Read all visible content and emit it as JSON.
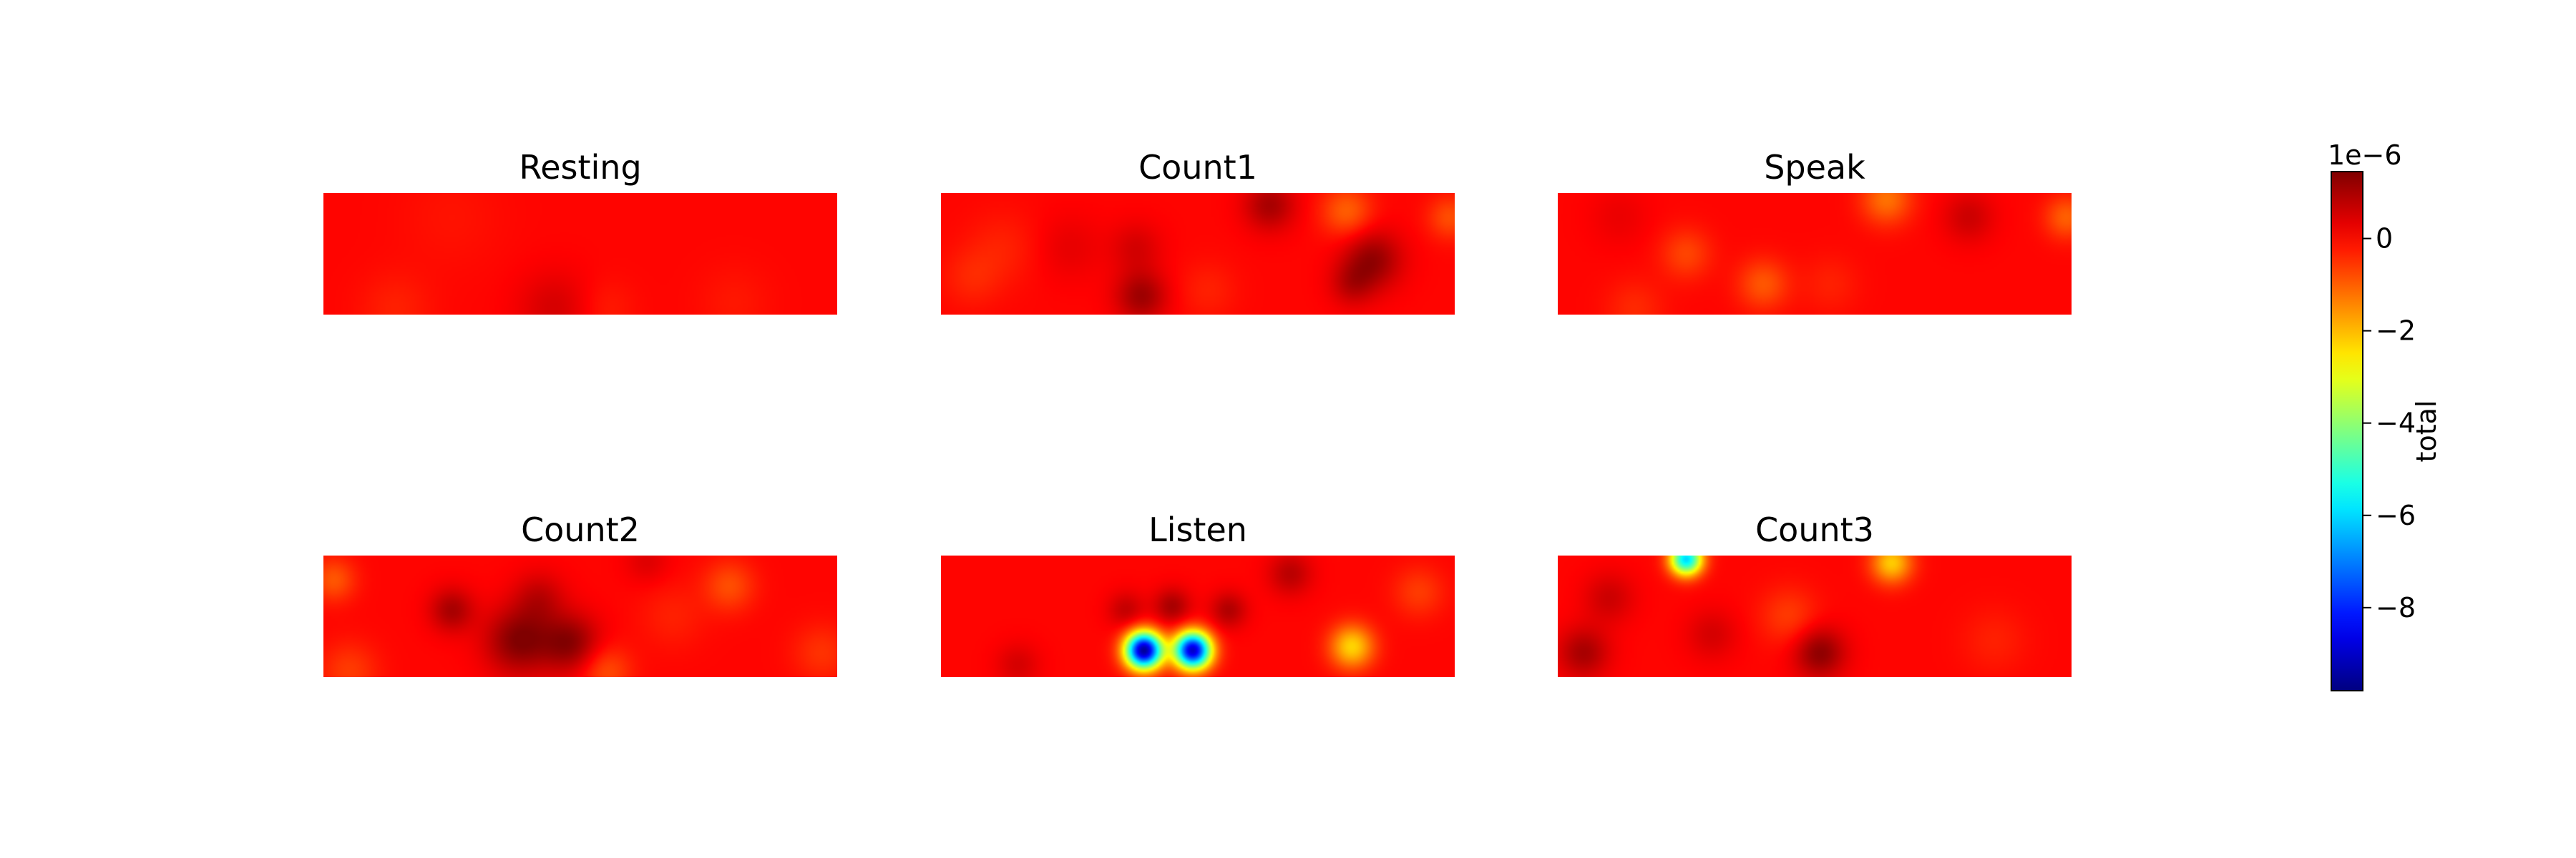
{
  "chart_data": {
    "type": "heatmap",
    "colormap": "jet",
    "panels": [
      {
        "title": "Resting",
        "blobs": [
          {
            "x": 0.45,
            "y": 0.95,
            "v": 0.5,
            "s": 0.05
          },
          {
            "x": 0.14,
            "y": 0.95,
            "v": -0.3,
            "s": 0.05
          },
          {
            "x": 0.55,
            "y": 0.95,
            "v": -0.25,
            "s": 0.04
          },
          {
            "x": 0.8,
            "y": 0.9,
            "v": -0.2,
            "s": 0.05
          },
          {
            "x": 0.25,
            "y": 0.2,
            "v": -0.15,
            "s": 0.07
          }
        ]
      },
      {
        "title": "Count1",
        "blobs": [
          {
            "x": 0.64,
            "y": 0.1,
            "v": 1.0,
            "s": 0.035
          },
          {
            "x": 0.79,
            "y": 0.15,
            "v": -1.0,
            "s": 0.035
          },
          {
            "x": 0.84,
            "y": 0.55,
            "v": 1.2,
            "s": 0.04
          },
          {
            "x": 0.8,
            "y": 0.75,
            "v": 0.7,
            "s": 0.03
          },
          {
            "x": 0.39,
            "y": 0.85,
            "v": 1.1,
            "s": 0.035
          },
          {
            "x": 0.38,
            "y": 0.45,
            "v": 0.5,
            "s": 0.035
          },
          {
            "x": 0.25,
            "y": 0.45,
            "v": 0.3,
            "s": 0.045
          },
          {
            "x": 0.99,
            "y": 0.2,
            "v": -0.8,
            "s": 0.03
          },
          {
            "x": 0.12,
            "y": 0.45,
            "v": -0.3,
            "s": 0.05
          },
          {
            "x": 0.52,
            "y": 0.8,
            "v": -0.3,
            "s": 0.04
          },
          {
            "x": 0.06,
            "y": 0.7,
            "v": -0.35,
            "s": 0.04
          }
        ]
      },
      {
        "title": "Speak",
        "blobs": [
          {
            "x": 0.64,
            "y": 0.05,
            "v": -1.2,
            "s": 0.035
          },
          {
            "x": 0.25,
            "y": 0.5,
            "v": -0.7,
            "s": 0.035
          },
          {
            "x": 0.4,
            "y": 0.75,
            "v": -0.9,
            "s": 0.035
          },
          {
            "x": 0.8,
            "y": 0.2,
            "v": 0.6,
            "s": 0.035
          },
          {
            "x": 0.99,
            "y": 0.2,
            "v": -1.0,
            "s": 0.03
          },
          {
            "x": 0.53,
            "y": 0.75,
            "v": -0.3,
            "s": 0.04
          },
          {
            "x": 0.15,
            "y": 0.95,
            "v": -0.4,
            "s": 0.04
          },
          {
            "x": 0.12,
            "y": 0.2,
            "v": 0.25,
            "s": 0.04
          }
        ]
      },
      {
        "title": "Count2",
        "blobs": [
          {
            "x": 0.38,
            "y": 0.7,
            "v": 1.4,
            "s": 0.045
          },
          {
            "x": 0.48,
            "y": 0.72,
            "v": 1.3,
            "s": 0.04
          },
          {
            "x": 0.42,
            "y": 0.35,
            "v": 0.7,
            "s": 0.035
          },
          {
            "x": 0.25,
            "y": 0.45,
            "v": 1.0,
            "s": 0.03
          },
          {
            "x": 0.02,
            "y": 0.2,
            "v": -0.9,
            "s": 0.03
          },
          {
            "x": 0.79,
            "y": 0.25,
            "v": -0.8,
            "s": 0.035
          },
          {
            "x": 0.55,
            "y": 0.95,
            "v": -0.8,
            "s": 0.035
          },
          {
            "x": 0.05,
            "y": 0.95,
            "v": -0.6,
            "s": 0.04
          },
          {
            "x": 0.97,
            "y": 0.8,
            "v": -0.5,
            "s": 0.04
          },
          {
            "x": 0.68,
            "y": 0.5,
            "v": -0.3,
            "s": 0.045
          },
          {
            "x": 0.63,
            "y": 0.05,
            "v": 0.4,
            "s": 0.03
          }
        ]
      },
      {
        "title": "Listen",
        "blobs": [
          {
            "x": 0.395,
            "y": 0.78,
            "v": -9.5,
            "s": 0.025
          },
          {
            "x": 0.49,
            "y": 0.78,
            "v": -9.0,
            "s": 0.025
          },
          {
            "x": 0.45,
            "y": 0.42,
            "v": 1.0,
            "s": 0.025
          },
          {
            "x": 0.36,
            "y": 0.45,
            "v": 0.7,
            "s": 0.025
          },
          {
            "x": 0.56,
            "y": 0.45,
            "v": 0.9,
            "s": 0.025
          },
          {
            "x": 0.8,
            "y": 0.75,
            "v": -2.3,
            "s": 0.03
          },
          {
            "x": 0.68,
            "y": 0.15,
            "v": 0.8,
            "s": 0.03
          },
          {
            "x": 0.93,
            "y": 0.3,
            "v": -0.6,
            "s": 0.035
          },
          {
            "x": 0.15,
            "y": 0.9,
            "v": 0.5,
            "s": 0.03
          }
        ]
      },
      {
        "title": "Count3",
        "blobs": [
          {
            "x": 0.25,
            "y": 0.03,
            "v": -6.0,
            "s": 0.022
          },
          {
            "x": 0.65,
            "y": 0.06,
            "v": -2.2,
            "s": 0.028
          },
          {
            "x": 0.51,
            "y": 0.8,
            "v": 1.3,
            "s": 0.035
          },
          {
            "x": 0.05,
            "y": 0.8,
            "v": 1.0,
            "s": 0.035
          },
          {
            "x": 0.3,
            "y": 0.65,
            "v": 0.5,
            "s": 0.035
          },
          {
            "x": 0.1,
            "y": 0.35,
            "v": 0.6,
            "s": 0.035
          },
          {
            "x": 0.45,
            "y": 0.5,
            "v": -0.6,
            "s": 0.04
          },
          {
            "x": 0.85,
            "y": 0.7,
            "v": -0.3,
            "s": 0.045
          }
        ]
      }
    ],
    "colorbar": {
      "label": "total",
      "offset_text": "1e−6",
      "vmin": -9.8,
      "vmax": 1.45,
      "ticks": [
        {
          "value": 0,
          "label": "0"
        },
        {
          "value": -2,
          "label": "−2"
        },
        {
          "value": -4,
          "label": "−4"
        },
        {
          "value": -6,
          "label": "−6"
        },
        {
          "value": -8,
          "label": "−8"
        }
      ]
    }
  }
}
